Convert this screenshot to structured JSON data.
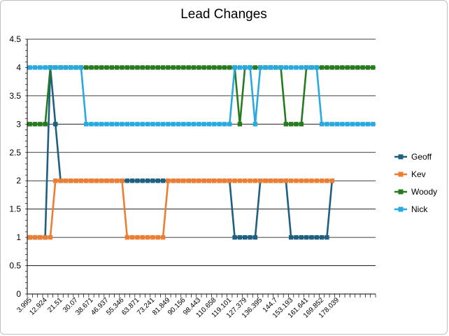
{
  "chart_data": {
    "type": "line",
    "title": "Lead Changes",
    "xlabel": "",
    "ylabel": "",
    "ylim": [
      0,
      4.5
    ],
    "yticks": [
      "0",
      "0.5",
      "1",
      "1.5",
      "2",
      "2.5",
      "3",
      "3.5",
      "4",
      "4.5"
    ],
    "grid": true,
    "legend_position": "right",
    "x_labels": [
      {
        "index": 0,
        "label": "3.995"
      },
      {
        "index": 3,
        "label": "12.924"
      },
      {
        "index": 6,
        "label": "21.51"
      },
      {
        "index": 9,
        "label": "30.07"
      },
      {
        "index": 12,
        "label": "38.671"
      },
      {
        "index": 15,
        "label": "46.937"
      },
      {
        "index": 18,
        "label": "55.346"
      },
      {
        "index": 21,
        "label": "63.871"
      },
      {
        "index": 24,
        "label": "73.241"
      },
      {
        "index": 27,
        "label": "81.849"
      },
      {
        "index": 30,
        "label": "90.156"
      },
      {
        "index": 33,
        "label": "98.443"
      },
      {
        "index": 36,
        "label": "110.658"
      },
      {
        "index": 39,
        "label": "119.101"
      },
      {
        "index": 42,
        "label": "127.379"
      },
      {
        "index": 45,
        "label": "136.395"
      },
      {
        "index": 48,
        "label": "144.7"
      },
      {
        "index": 51,
        "label": "153.193"
      },
      {
        "index": 54,
        "label": "161.641"
      },
      {
        "index": 57,
        "label": "169.852"
      },
      {
        "index": 60,
        "label": "178.039"
      }
    ],
    "series": [
      {
        "name": "Geoff",
        "color": "#1f5f80",
        "values": [
          1,
          1,
          1,
          1,
          4,
          3,
          2,
          2,
          2,
          2,
          2,
          2,
          2,
          2,
          2,
          2,
          2,
          2,
          2,
          2,
          2,
          2,
          2,
          2,
          2,
          2,
          2,
          2,
          2,
          2,
          2,
          2,
          2,
          2,
          2,
          2,
          2,
          2,
          2,
          2,
          1,
          1,
          1,
          1,
          1,
          2,
          2,
          2,
          2,
          2,
          2,
          1,
          1,
          1,
          1,
          1,
          1,
          1,
          1,
          2
        ]
      },
      {
        "name": "Kev",
        "color": "#ed7d31",
        "values": [
          1,
          1,
          1,
          1,
          1,
          2,
          2,
          2,
          2,
          2,
          2,
          2,
          2,
          2,
          2,
          2,
          2,
          2,
          2,
          1,
          1,
          1,
          1,
          1,
          1,
          1,
          1,
          2,
          2,
          2,
          2,
          2,
          2,
          2,
          2,
          2,
          2,
          2,
          2,
          2,
          2,
          2,
          2,
          2,
          2,
          2,
          2,
          2,
          2,
          2,
          2,
          2,
          2,
          2,
          2,
          2,
          2,
          2,
          2,
          2
        ]
      },
      {
        "name": "Woody",
        "color": "#267a1f",
        "values": [
          3,
          3,
          3,
          3,
          4,
          4,
          4,
          4,
          4,
          4,
          4,
          4,
          4,
          4,
          4,
          4,
          4,
          4,
          4,
          4,
          4,
          4,
          4,
          4,
          4,
          4,
          4,
          4,
          4,
          4,
          4,
          4,
          4,
          4,
          4,
          4,
          4,
          4,
          4,
          4,
          4,
          3,
          4,
          4,
          4,
          4,
          4,
          4,
          4,
          4,
          3,
          3,
          3,
          3,
          4,
          4,
          4,
          4,
          4,
          4,
          4,
          4,
          4,
          4,
          4,
          4,
          4,
          4
        ]
      },
      {
        "name": "Nick",
        "color": "#28a9e0",
        "values": [
          4,
          4,
          4,
          4,
          4,
          4,
          4,
          4,
          4,
          4,
          4,
          3,
          3,
          3,
          3,
          3,
          3,
          3,
          3,
          3,
          3,
          3,
          3,
          3,
          3,
          3,
          3,
          3,
          3,
          3,
          3,
          3,
          3,
          3,
          3,
          3,
          3,
          3,
          3,
          3,
          4,
          4,
          4,
          4,
          3,
          4,
          4,
          4,
          4,
          4,
          4,
          4,
          4,
          4,
          4,
          4,
          4,
          3,
          3,
          3,
          3,
          3,
          3,
          3,
          3,
          3,
          3,
          3
        ]
      }
    ]
  }
}
